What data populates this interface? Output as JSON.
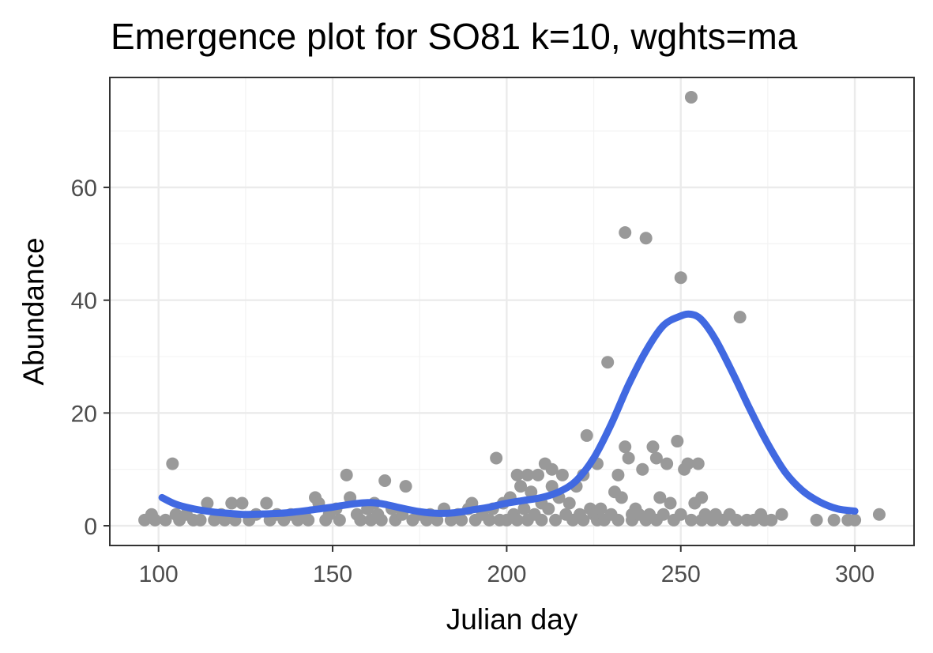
{
  "chart_data": {
    "type": "scatter",
    "title": "Emergence plot for SO81 k=10, wghts=ma",
    "xlabel": "Julian day",
    "ylabel": "Abundance",
    "xlim": [
      86,
      317
    ],
    "ylim": [
      -3.5,
      79.5
    ],
    "x_ticks": [
      100,
      150,
      200,
      250,
      300
    ],
    "y_ticks": [
      0,
      20,
      40,
      60
    ],
    "x_minor": [
      125,
      175,
      225,
      275
    ],
    "y_minor": [
      10,
      30,
      50,
      70
    ],
    "grid": true,
    "legend": "none",
    "point_color": "#999999",
    "line_color": "#4169e1",
    "points": [
      [
        96,
        1
      ],
      [
        98,
        2
      ],
      [
        99,
        1
      ],
      [
        102,
        1
      ],
      [
        104,
        11
      ],
      [
        105,
        2
      ],
      [
        106,
        1
      ],
      [
        108,
        2
      ],
      [
        110,
        1
      ],
      [
        112,
        1
      ],
      [
        114,
        4
      ],
      [
        116,
        1
      ],
      [
        118,
        2
      ],
      [
        119,
        1
      ],
      [
        121,
        4
      ],
      [
        122,
        1
      ],
      [
        124,
        4
      ],
      [
        126,
        1
      ],
      [
        128,
        2
      ],
      [
        131,
        4
      ],
      [
        132,
        1
      ],
      [
        134,
        2
      ],
      [
        136,
        1
      ],
      [
        138,
        2
      ],
      [
        140,
        1
      ],
      [
        142,
        2
      ],
      [
        143,
        1
      ],
      [
        145,
        5
      ],
      [
        146,
        4
      ],
      [
        148,
        1
      ],
      [
        149,
        2
      ],
      [
        151,
        3
      ],
      [
        152,
        1
      ],
      [
        154,
        9
      ],
      [
        155,
        5
      ],
      [
        157,
        2
      ],
      [
        158,
        1
      ],
      [
        160,
        3
      ],
      [
        161,
        1
      ],
      [
        162,
        4
      ],
      [
        163,
        2
      ],
      [
        164,
        1
      ],
      [
        165,
        8
      ],
      [
        167,
        3
      ],
      [
        168,
        1
      ],
      [
        170,
        2
      ],
      [
        171,
        7
      ],
      [
        173,
        1
      ],
      [
        175,
        2
      ],
      [
        177,
        1
      ],
      [
        178,
        2
      ],
      [
        180,
        1
      ],
      [
        182,
        3
      ],
      [
        184,
        1
      ],
      [
        186,
        2
      ],
      [
        187,
        1
      ],
      [
        189,
        3
      ],
      [
        190,
        4
      ],
      [
        191,
        1
      ],
      [
        193,
        2
      ],
      [
        195,
        1
      ],
      [
        196,
        3
      ],
      [
        197,
        12
      ],
      [
        198,
        1
      ],
      [
        199,
        4
      ],
      [
        200,
        1
      ],
      [
        201,
        5
      ],
      [
        202,
        2
      ],
      [
        203,
        9
      ],
      [
        203,
        1
      ],
      [
        204,
        7
      ],
      [
        205,
        3
      ],
      [
        206,
        9
      ],
      [
        206,
        1
      ],
      [
        207,
        6
      ],
      [
        208,
        2
      ],
      [
        209,
        9
      ],
      [
        210,
        4
      ],
      [
        210,
        1
      ],
      [
        211,
        11
      ],
      [
        212,
        3
      ],
      [
        213,
        10
      ],
      [
        213,
        7
      ],
      [
        214,
        1
      ],
      [
        215,
        5
      ],
      [
        216,
        9
      ],
      [
        217,
        2
      ],
      [
        218,
        4
      ],
      [
        219,
        1
      ],
      [
        220,
        7
      ],
      [
        221,
        2
      ],
      [
        222,
        9
      ],
      [
        222,
        1
      ],
      [
        223,
        16
      ],
      [
        224,
        3
      ],
      [
        225,
        2
      ],
      [
        226,
        11
      ],
      [
        226,
        1
      ],
      [
        227,
        3
      ],
      [
        228,
        1
      ],
      [
        229,
        29
      ],
      [
        230,
        2
      ],
      [
        231,
        6
      ],
      [
        232,
        9
      ],
      [
        232,
        1
      ],
      [
        233,
        5
      ],
      [
        234,
        14
      ],
      [
        234,
        52
      ],
      [
        235,
        12
      ],
      [
        236,
        2
      ],
      [
        236,
        1
      ],
      [
        237,
        3
      ],
      [
        238,
        2
      ],
      [
        239,
        10
      ],
      [
        240,
        51
      ],
      [
        240,
        1
      ],
      [
        241,
        2
      ],
      [
        242,
        14
      ],
      [
        243,
        12
      ],
      [
        243,
        1
      ],
      [
        244,
        5
      ],
      [
        245,
        2
      ],
      [
        246,
        11
      ],
      [
        247,
        4
      ],
      [
        248,
        1
      ],
      [
        249,
        15
      ],
      [
        250,
        44
      ],
      [
        250,
        2
      ],
      [
        251,
        10
      ],
      [
        252,
        11
      ],
      [
        253,
        76
      ],
      [
        253,
        1
      ],
      [
        254,
        4
      ],
      [
        255,
        11
      ],
      [
        256,
        5
      ],
      [
        256,
        1
      ],
      [
        257,
        2
      ],
      [
        259,
        1
      ],
      [
        260,
        2
      ],
      [
        262,
        1
      ],
      [
        264,
        2
      ],
      [
        266,
        1
      ],
      [
        267,
        37
      ],
      [
        269,
        1
      ],
      [
        271,
        1
      ],
      [
        273,
        2
      ],
      [
        274,
        1
      ],
      [
        276,
        1
      ],
      [
        279,
        2
      ],
      [
        289,
        1
      ],
      [
        294,
        1
      ],
      [
        298,
        1
      ],
      [
        300,
        1
      ],
      [
        307,
        2
      ]
    ],
    "smooth_line": {
      "x": [
        101,
        105,
        110,
        115,
        120,
        125,
        130,
        135,
        140,
        145,
        150,
        155,
        160,
        163,
        165,
        170,
        175,
        180,
        185,
        190,
        195,
        200,
        205,
        210,
        215,
        220,
        225,
        230,
        235,
        240,
        245,
        250,
        253,
        256,
        260,
        265,
        270,
        275,
        280,
        285,
        290,
        295,
        300
      ],
      "y": [
        5,
        3.8,
        3,
        2.5,
        2.2,
        2,
        2.1,
        2.2,
        2.5,
        2.9,
        3.3,
        3.8,
        4.1,
        4,
        3.8,
        3.1,
        2.5,
        2.2,
        2.3,
        2.8,
        3.3,
        4,
        4.5,
        5,
        6,
        8,
        12,
        18,
        25,
        31,
        35.5,
        37.2,
        37.5,
        36.5,
        33,
        27,
        20.5,
        14.5,
        9.5,
        6.2,
        4.2,
        3,
        2.6
      ]
    }
  }
}
